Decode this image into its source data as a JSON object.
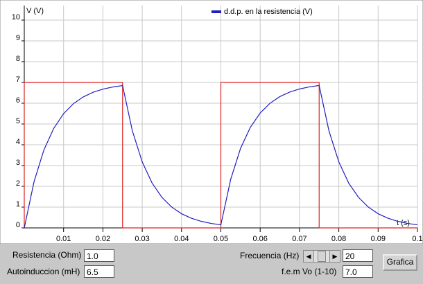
{
  "chart_data": {
    "type": "line",
    "y_label": "V (V)",
    "x_label": "t (s)",
    "series": [
      {
        "name": "d.d.p. en la resistencia (V)",
        "color": "#1f1fbf",
        "x": [
          0,
          0.0025,
          0.005,
          0.0075,
          0.01,
          0.0125,
          0.015,
          0.0175,
          0.02,
          0.0225,
          0.025,
          0.0275,
          0.03,
          0.0325,
          0.035,
          0.0375,
          0.04,
          0.0425,
          0.045,
          0.0475,
          0.05,
          0.0525,
          0.055,
          0.0575,
          0.06,
          0.0625,
          0.065,
          0.0675,
          0.07,
          0.0725,
          0.075,
          0.0775,
          0.08,
          0.0825,
          0.085,
          0.0875,
          0.09,
          0.0925,
          0.095,
          0.0975,
          0.1
        ],
        "values": [
          0,
          2.235,
          3.756,
          4.792,
          5.497,
          5.977,
          6.303,
          6.526,
          6.677,
          6.78,
          6.85,
          4.663,
          3.174,
          2.161,
          1.471,
          1.001,
          0.682,
          0.464,
          0.316,
          0.215,
          0.147,
          2.335,
          3.824,
          4.839,
          5.529,
          5.998,
          6.318,
          6.536,
          6.684,
          6.785,
          6.853,
          4.665,
          3.176,
          2.161,
          1.471,
          1.002,
          0.682,
          0.464,
          0.316,
          0.215,
          0.147
        ]
      },
      {
        "color": "#dd2222",
        "x": [
          0,
          0,
          0.025,
          0.025,
          0.05,
          0.05,
          0.075,
          0.075,
          0.1
        ],
        "values": [
          0,
          7,
          7,
          0,
          0,
          7,
          7,
          0,
          0
        ]
      }
    ],
    "xlim": [
      0,
      0.1
    ],
    "ylim": [
      0,
      10.7
    ],
    "xticks": [
      0.01,
      0.02,
      0.03,
      0.04,
      0.05,
      0.06,
      0.07,
      0.08,
      0.09,
      0.1
    ],
    "yticks": [
      0,
      1,
      2,
      3,
      4,
      5,
      6,
      7,
      8,
      9,
      10
    ],
    "grid": true,
    "legend": "top"
  },
  "controls": {
    "resistencia": {
      "label": "Resistencia (Ohm)",
      "value": "1.0"
    },
    "autoinduccion": {
      "label": "Autoinduccion (mH)",
      "value": "6.5"
    },
    "frecuencia": {
      "label": "Frecuencia (Hz)",
      "value": "20"
    },
    "fem": {
      "label": "f.e.m Vo (1-10)",
      "value": "7.0"
    },
    "button": "Grafica"
  }
}
